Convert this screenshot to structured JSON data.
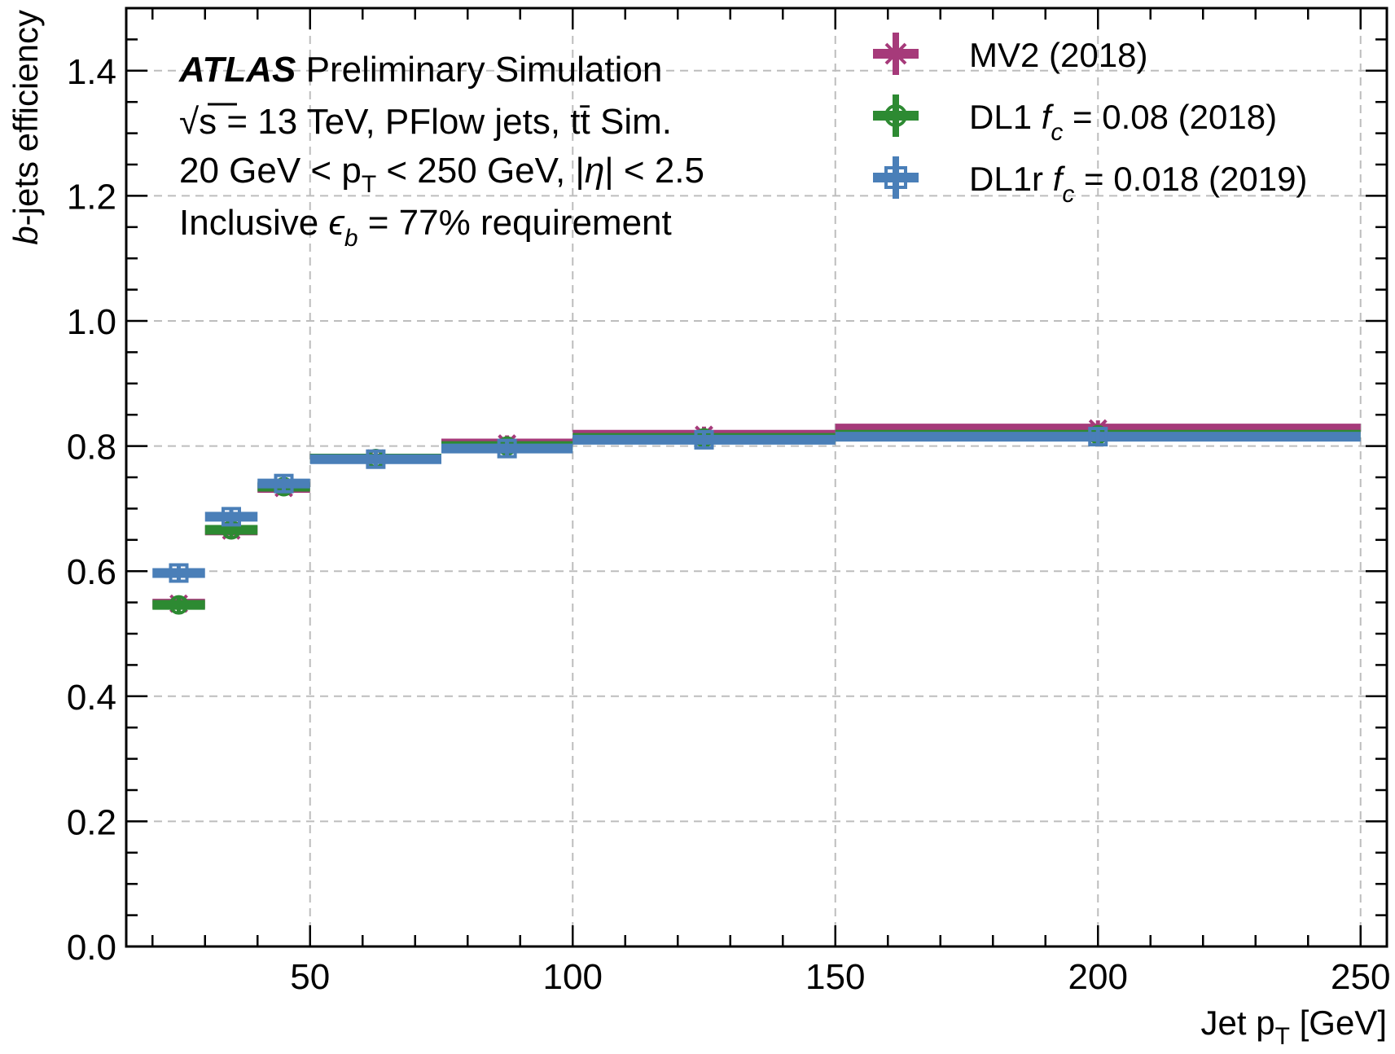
{
  "chart_data": {
    "type": "scatter",
    "xlabel": "Jet p",
    "xlabel_sub": "T",
    "xlabel_unit": " [GeV]",
    "ylabel_italic": "b",
    "ylabel_rest": "-jets efficiency",
    "xlim": [
      15,
      255
    ],
    "ylim": [
      0.0,
      1.5
    ],
    "x_ticks": [
      50,
      100,
      150,
      200,
      250
    ],
    "x_tick_labels": [
      "50",
      "100",
      "150",
      "200",
      "250"
    ],
    "y_ticks": [
      0.0,
      0.2,
      0.4,
      0.6,
      0.8,
      1.0,
      1.2,
      1.4
    ],
    "y_tick_labels": [
      "0.0",
      "0.2",
      "0.4",
      "0.6",
      "0.8",
      "1.0",
      "1.2",
      "1.4"
    ],
    "grid": true,
    "legend_position": "top-right",
    "bins": [
      [
        20,
        30
      ],
      [
        30,
        40
      ],
      [
        40,
        50
      ],
      [
        50,
        75
      ],
      [
        75,
        100
      ],
      [
        100,
        150
      ],
      [
        150,
        250
      ]
    ],
    "series": [
      {
        "name": "MV2 (2018)",
        "color": "#a63a7a",
        "marker": "x",
        "x": [
          25,
          35,
          45,
          62.5,
          87.5,
          125,
          200
        ],
        "y": [
          0.548,
          0.665,
          0.733,
          0.78,
          0.804,
          0.818,
          0.828
        ]
      },
      {
        "name": "DL1 f_c = 0.08 (2018)",
        "color": "#2d8a32",
        "marker": "circle",
        "x": [
          25,
          35,
          45,
          62.5,
          87.5,
          125,
          200
        ],
        "y": [
          0.546,
          0.666,
          0.735,
          0.78,
          0.8,
          0.813,
          0.818
        ]
      },
      {
        "name": "DL1r f_c = 0.018 (2019)",
        "color": "#4a7fb8",
        "marker": "square",
        "x": [
          25,
          35,
          45,
          62.5,
          87.5,
          125,
          200
        ],
        "y": [
          0.597,
          0.687,
          0.74,
          0.779,
          0.796,
          0.81,
          0.815
        ]
      }
    ],
    "legend": [
      {
        "pre": "MV2 (2018)",
        "fc": "",
        "post": ""
      },
      {
        "pre": "DL1 ",
        "fc": "c",
        "post": " = 0.08 (2018)"
      },
      {
        "pre": "DL1r ",
        "fc": "c",
        "post": " = 0.018 (2019)"
      }
    ],
    "annotations": {
      "atlas": "ATLAS",
      "atlas_rest": " Preliminary Simulation",
      "line2_sqrt": "√",
      "line2_s": "s",
      "line2_rest": " = 13 TeV, PFlow jets, t",
      "line2_tbar": "t̄",
      "line2_end": " Sim.",
      "line3_a": "20 GeV < p",
      "line3_sub": "T",
      "line3_b": " < 250 GeV, |",
      "line3_eta": "η",
      "line3_c": "| < 2.5",
      "line4_a": "Inclusive ",
      "line4_eps": "ϵ",
      "line4_sub": "b",
      "line4_b": " = 77% requirement"
    }
  }
}
